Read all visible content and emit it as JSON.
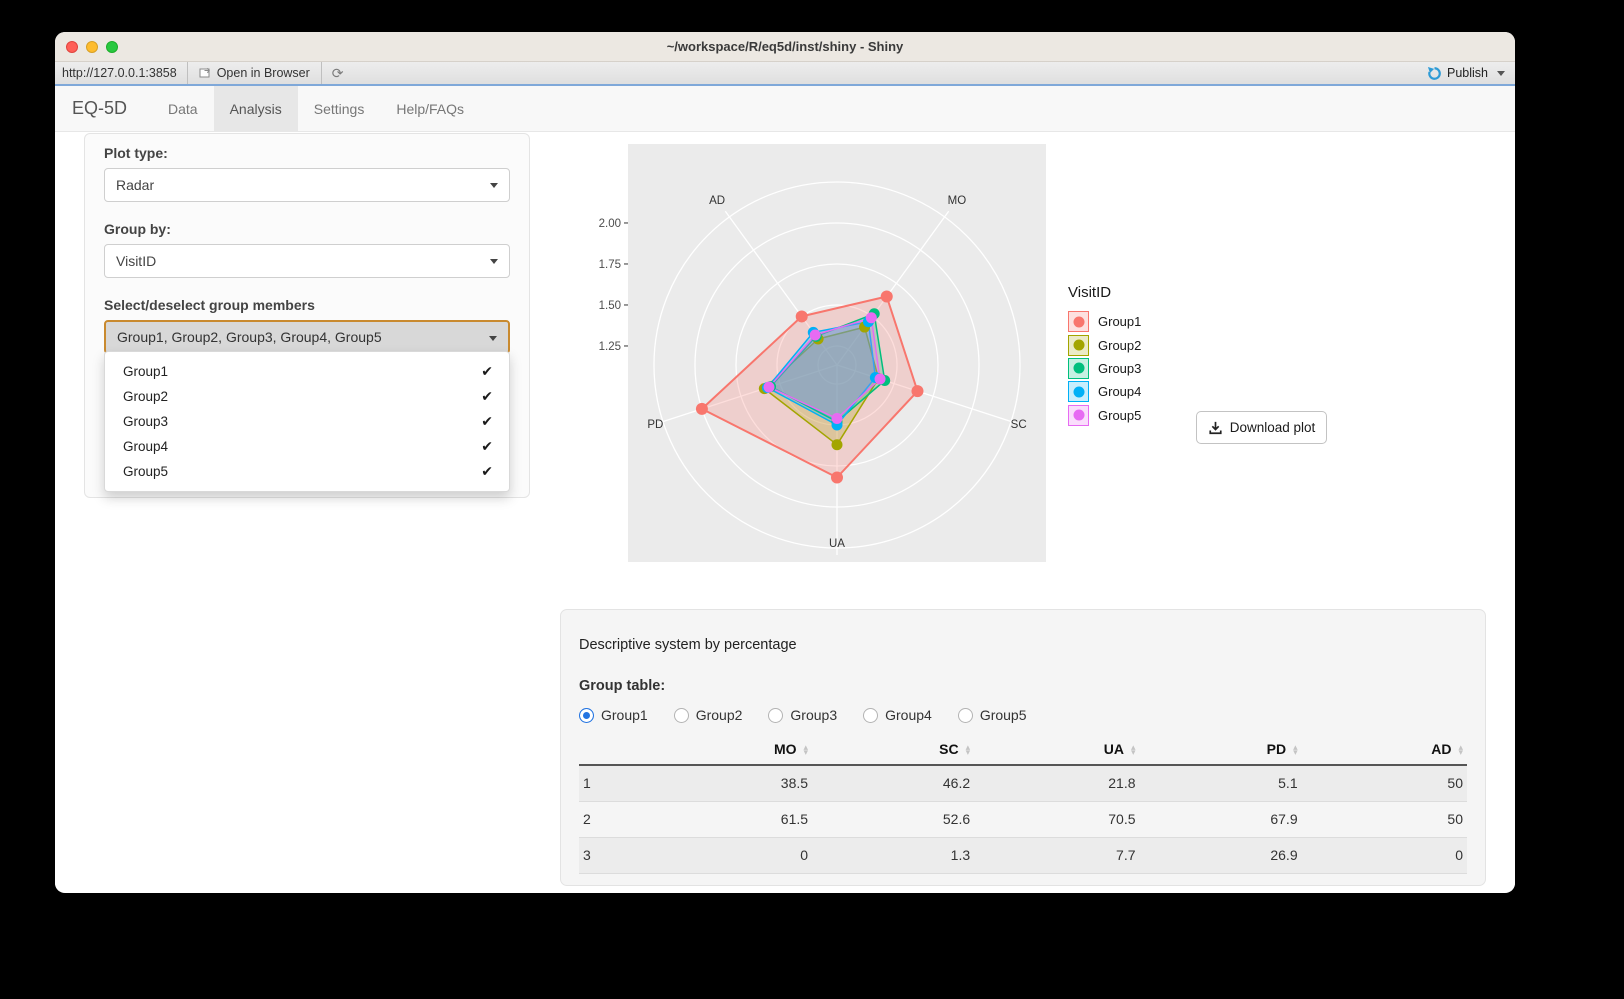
{
  "window": {
    "title": "~/workspace/R/eq5d/inst/shiny - Shiny"
  },
  "toolbar": {
    "url": "http://127.0.0.1:3858",
    "open_in_browser": "Open in Browser",
    "publish": "Publish"
  },
  "navbar": {
    "brand": "EQ-5D",
    "tabs": [
      {
        "label": "Data",
        "active": false
      },
      {
        "label": "Analysis",
        "active": true
      },
      {
        "label": "Settings",
        "active": false
      },
      {
        "label": "Help/FAQs",
        "active": false
      }
    ]
  },
  "sidebar": {
    "plot_type_label": "Plot type:",
    "plot_type_value": "Radar",
    "group_by_label": "Group by:",
    "group_by_value": "VisitID",
    "members_label": "Select/deselect group members",
    "members_value": "Group1, Group2, Group3, Group4, Group5",
    "members_options": [
      {
        "label": "Group1",
        "checked": true
      },
      {
        "label": "Group2",
        "checked": true
      },
      {
        "label": "Group3",
        "checked": true
      },
      {
        "label": "Group4",
        "checked": true
      },
      {
        "label": "Group5",
        "checked": true
      }
    ]
  },
  "chart_data": {
    "type": "radar",
    "grouping": "VisitID",
    "axes": [
      "MO",
      "SC",
      "UA",
      "PD",
      "AD"
    ],
    "axis_angles_deg": {
      "MO": 54,
      "SC": 342,
      "UA": 270,
      "PD": 198,
      "AD": 126
    },
    "radial_ticks": [
      2.0,
      1.75,
      1.5,
      1.25
    ],
    "grid_rings": [
      1.25,
      1.5,
      1.75,
      2.0,
      2.25
    ],
    "rmin": 1.134,
    "rmax": 2.25,
    "series": [
      {
        "name": "Group1",
        "color": "#F8766D",
        "values": [
          1.65,
          1.65,
          1.82,
          2.0,
          1.5
        ]
      },
      {
        "name": "Group2",
        "color": "#A3A500",
        "values": [
          1.42,
          1.4,
          1.62,
          1.6,
          1.33
        ]
      },
      {
        "name": "Group3",
        "color": "#00BF7D",
        "values": [
          1.52,
          1.44,
          1.48,
          1.56,
          1.35
        ]
      },
      {
        "name": "Group4",
        "color": "#00B0F6",
        "values": [
          1.46,
          1.38,
          1.5,
          1.58,
          1.38
        ]
      },
      {
        "name": "Group5",
        "color": "#E76BF3",
        "values": [
          1.49,
          1.41,
          1.46,
          1.57,
          1.36
        ]
      }
    ]
  },
  "legend": {
    "title": "VisitID",
    "items": [
      {
        "label": "Group1",
        "color": "#F8766D"
      },
      {
        "label": "Group2",
        "color": "#A3A500"
      },
      {
        "label": "Group3",
        "color": "#00BF7D"
      },
      {
        "label": "Group4",
        "color": "#00B0F6"
      },
      {
        "label": "Group5",
        "color": "#E76BF3"
      }
    ]
  },
  "download": {
    "label": "Download plot"
  },
  "table_panel": {
    "title": "Descriptive system by percentage",
    "group_table_label": "Group table:",
    "radio_options": [
      {
        "label": "Group1",
        "selected": true
      },
      {
        "label": "Group2",
        "selected": false
      },
      {
        "label": "Group3",
        "selected": false
      },
      {
        "label": "Group4",
        "selected": false
      },
      {
        "label": "Group5",
        "selected": false
      }
    ],
    "table": {
      "headers": [
        "",
        "MO",
        "SC",
        "UA",
        "PD",
        "AD"
      ],
      "rows": [
        [
          "1",
          "38.5",
          "46.2",
          "21.8",
          "5.1",
          "50"
        ],
        [
          "2",
          "61.5",
          "52.6",
          "70.5",
          "67.9",
          "50"
        ],
        [
          "3",
          "0",
          "1.3",
          "7.7",
          "26.9",
          "0"
        ]
      ]
    }
  }
}
